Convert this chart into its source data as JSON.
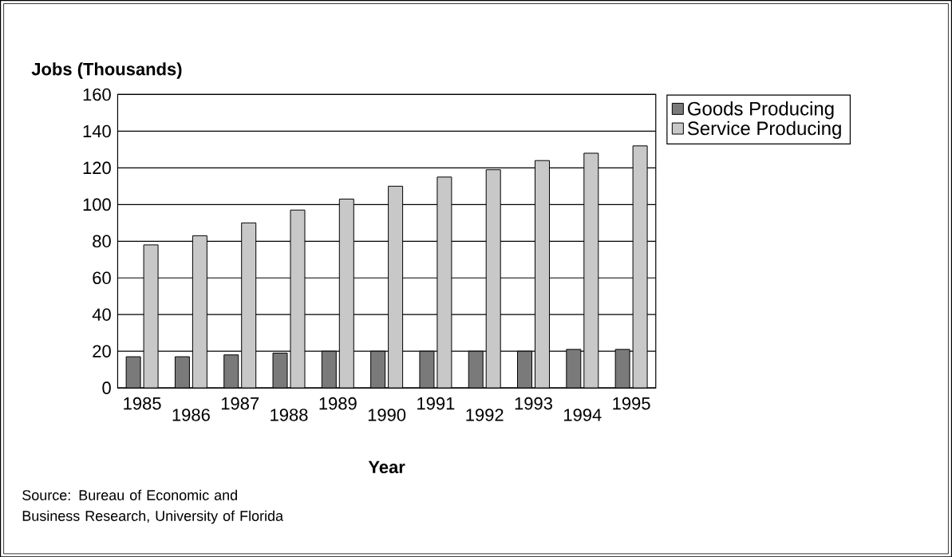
{
  "chart_data": {
    "type": "bar",
    "ylabel": "Jobs (Thousands)",
    "xlabel": "Year",
    "categories": [
      "1985",
      "1986",
      "1987",
      "1988",
      "1989",
      "1990",
      "1991",
      "1992",
      "1993",
      "1994",
      "1995"
    ],
    "series": [
      {
        "name": "Goods Producing",
        "color": "#7a7a7a",
        "values": [
          17,
          17,
          18,
          19,
          20,
          20,
          20,
          20,
          20,
          21,
          21
        ]
      },
      {
        "name": "Service Producing",
        "color": "#c8c8c8",
        "values": [
          78,
          83,
          90,
          97,
          103,
          110,
          115,
          119,
          124,
          128,
          132
        ]
      }
    ],
    "ylim": [
      0,
      160
    ],
    "yticks": [
      0,
      20,
      40,
      60,
      80,
      100,
      120,
      140,
      160
    ],
    "grid": "y",
    "legend": "right",
    "annotations": [
      "Source:  Bureau of Economic and Business Research, University of Florida"
    ]
  }
}
